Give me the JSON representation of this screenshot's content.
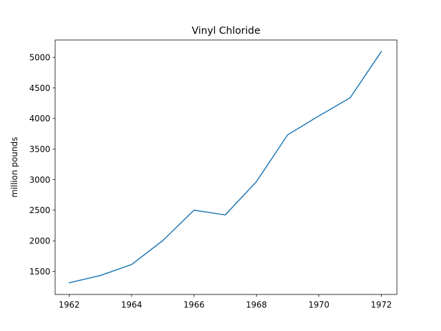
{
  "chart_data": {
    "type": "line",
    "title": "Vinyl Chloride",
    "xlabel": "",
    "ylabel": "million pounds",
    "x": [
      1962,
      1963,
      1964,
      1965,
      1966,
      1967,
      1968,
      1969,
      1970,
      1971,
      1972
    ],
    "series": [
      {
        "values": [
          1313,
          1433,
          1613,
          2004,
          2501,
          2423,
          2968,
          3733,
          4042,
          4337,
          5093
        ],
        "color": "#1f77b4"
      }
    ],
    "xlim": [
      1961.55,
      1972.5
    ],
    "ylim": [
      1123,
      5283
    ],
    "xticks": [
      1962,
      1964,
      1966,
      1968,
      1970,
      1972
    ],
    "yticks": [
      1500,
      2000,
      2500,
      3000,
      3500,
      4000,
      4500,
      5000
    ],
    "grid": false,
    "legend": "none"
  }
}
